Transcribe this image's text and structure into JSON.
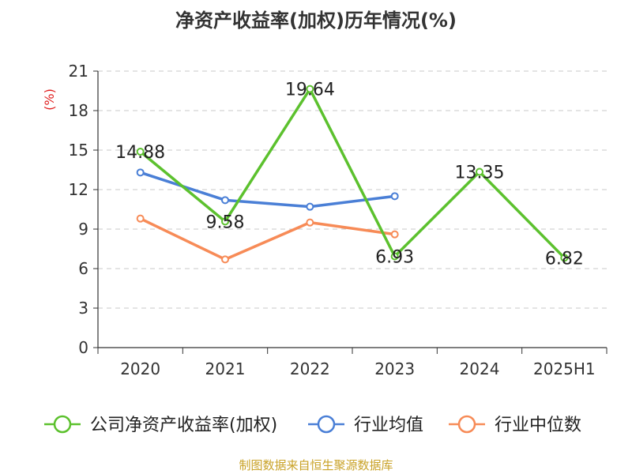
{
  "chart_data": {
    "type": "line",
    "title": "净资产收益率(加权)历年情况(%)",
    "ylabel": "(%)",
    "categories": [
      "2020",
      "2021",
      "2022",
      "2023",
      "2024",
      "2025H1"
    ],
    "ylim": [
      0,
      21
    ],
    "yticks": [
      "0",
      "3",
      "6",
      "9",
      "12",
      "15",
      "18",
      "21"
    ],
    "grid": true,
    "legend_position": "bottom",
    "series": [
      {
        "name": "公司净资产收益率(加权)",
        "color": "#5cc12e",
        "values": [
          14.88,
          9.58,
          19.64,
          6.93,
          13.35,
          6.82
        ],
        "labels": [
          "14.88",
          "9.58",
          "19.64",
          "6.93",
          "13.35",
          "6.82"
        ]
      },
      {
        "name": "行业均值",
        "color": "#4a7fd6",
        "values": [
          13.3,
          11.2,
          10.7,
          11.5,
          null,
          null
        ]
      },
      {
        "name": "行业中位数",
        "color": "#f78b57",
        "values": [
          9.8,
          6.7,
          9.5,
          8.6,
          null,
          null
        ]
      }
    ]
  },
  "footer": {
    "source": "制图数据来自恒生聚源数据库",
    "color": "#c9a227"
  }
}
